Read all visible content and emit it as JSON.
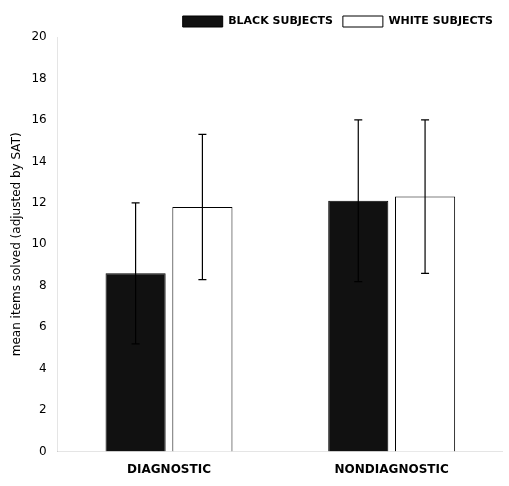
{
  "chart_data": {
    "type": "bar",
    "categories": [
      "DIAGNOSTIC",
      "NONDIAGNOSTIC"
    ],
    "series": [
      {
        "name": "BLACK SUBJECTS",
        "color": "#111111",
        "values": [
          8.6,
          12.1
        ],
        "errors": [
          3.4,
          3.9
        ]
      },
      {
        "name": "WHITE SUBJECTS",
        "color": "#ffffff",
        "values": [
          11.8,
          12.3
        ],
        "errors": [
          3.5,
          3.7
        ]
      }
    ],
    "ylabel": "mean items solved (adjusted by SAT)",
    "ylim": [
      0,
      20
    ],
    "yticks": [
      0,
      2,
      4,
      6,
      8,
      10,
      12,
      14,
      16,
      18,
      20
    ],
    "grid": false,
    "legend": "upper right"
  }
}
